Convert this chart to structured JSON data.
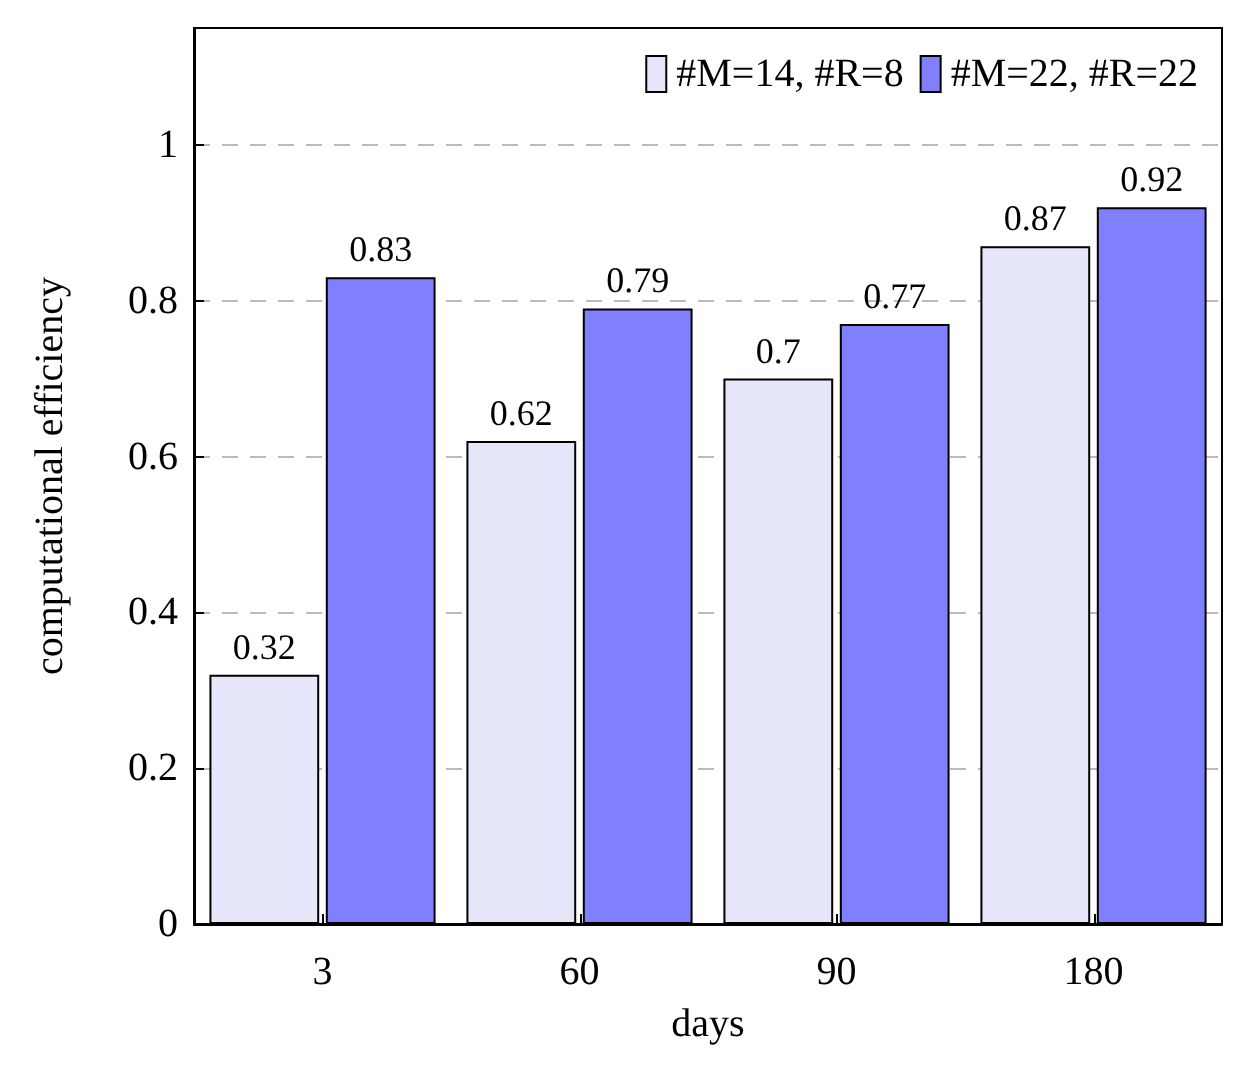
{
  "chart_data": {
    "type": "bar",
    "xlabel": "days",
    "ylabel": "computational efficiency",
    "categories": [
      "3",
      "60",
      "90",
      "180"
    ],
    "series": [
      {
        "name": "#M=14, #R=8",
        "color": "#e6e6fa",
        "values": [
          0.32,
          0.62,
          0.7,
          0.87
        ]
      },
      {
        "name": "#M=22, #R=22",
        "color": "#8080ff",
        "values": [
          0.83,
          0.79,
          0.77,
          0.92
        ]
      }
    ],
    "ylim": [
      0,
      1.15
    ],
    "yticks": [
      0,
      0.2,
      0.4,
      0.6,
      0.8,
      1
    ],
    "grid": "y",
    "legend": "top right",
    "data_labels": true
  }
}
